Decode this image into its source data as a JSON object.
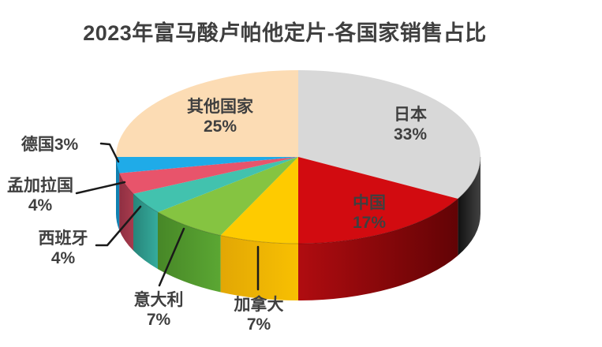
{
  "title": "2023年富马酸卢帕他定片-各国家销售占比",
  "background_color": "#ffffff",
  "text_color": "#3f3f3f",
  "leader_line_color": "#1a1a1a",
  "chart_data": {
    "type": "pie",
    "style": "3d",
    "title": "2023年富马酸卢帕他定片-各国家销售占比",
    "direction": "clockwise",
    "start_angle_deg": 0,
    "legend_position": "none",
    "data_labels": "category-name-and-percent",
    "slices": [
      {
        "id": "japan",
        "name": "日本",
        "value": 33,
        "pct_label": "33%",
        "label_lines": [
          "日本",
          "33%"
        ],
        "color": "#d8d8d8",
        "side_gradient": [
          "#111111",
          "#424242"
        ]
      },
      {
        "id": "china",
        "name": "中国",
        "value": 17,
        "pct_label": "17%",
        "label_lines": [
          "中国",
          "17%"
        ],
        "color": "#d20b10",
        "side_gradient": [
          "#b00c10",
          "#620305"
        ]
      },
      {
        "id": "canada",
        "name": "加拿大",
        "value": 7,
        "pct_label": "7%",
        "label_lines": [
          "加拿大",
          "7%"
        ],
        "color": "#fecb00",
        "side_gradient": [
          "#e2a705",
          "#f8c002"
        ]
      },
      {
        "id": "italy",
        "name": "意大利",
        "value": 7,
        "pct_label": "7%",
        "label_lines": [
          "意大利",
          "7%"
        ],
        "color": "#85c441",
        "side_gradient": [
          "#478727",
          "#5ba733"
        ]
      },
      {
        "id": "spain",
        "name": "西班牙",
        "value": 4,
        "pct_label": "4%",
        "label_lines": [
          "西班牙",
          "4%"
        ],
        "color": "#42c2ae",
        "side_gradient": [
          "#27857a",
          "#35ab9c"
        ]
      },
      {
        "id": "bangladesh",
        "name": "孟加拉国",
        "value": 4,
        "pct_label": "4%",
        "label_lines": [
          "孟加拉国",
          "4%"
        ],
        "color": "#e8546b",
        "side_gradient": [
          "#8f2f42",
          "#a73b4d"
        ]
      },
      {
        "id": "germany",
        "name": "德国",
        "value": 3,
        "pct_label": "3%",
        "label_lines": [
          "德国3%"
        ],
        "color": "#1fabe8",
        "side_gradient": [
          "#0f7fb0",
          "#1285b5"
        ]
      },
      {
        "id": "others",
        "name": "其他国家",
        "value": 25,
        "pct_label": "25%",
        "label_lines": [
          "其他国家",
          "25%"
        ],
        "color": "#fcdcb4",
        "side_gradient": [
          "#d8b07e",
          "#d8b07e"
        ]
      }
    ]
  }
}
